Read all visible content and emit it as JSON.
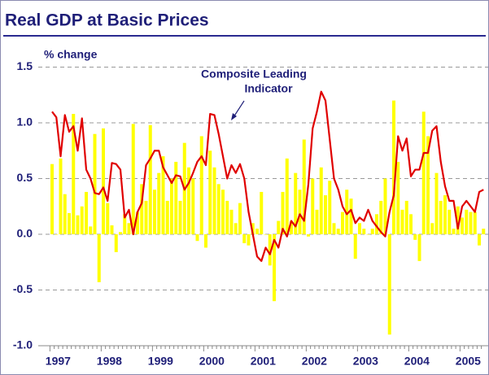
{
  "chart_data": {
    "type": "bar",
    "title": "Real GDP at Basic Prices",
    "ylabel": "% change",
    "annotation": [
      "Composite Leading",
      "Indicator"
    ],
    "categories": [
      "1997",
      null,
      null,
      null,
      null,
      null,
      null,
      null,
      null,
      null,
      null,
      null,
      "1998",
      null,
      null,
      null,
      null,
      null,
      null,
      null,
      null,
      null,
      null,
      null,
      "1999",
      null,
      null,
      null,
      null,
      null,
      null,
      null,
      null,
      null,
      null,
      null,
      "2000",
      null,
      null,
      null,
      null,
      null,
      null,
      null,
      null,
      null,
      null,
      null,
      "2001",
      null,
      null,
      null,
      null,
      null,
      null,
      null,
      null,
      null,
      null,
      null,
      "2002",
      null,
      null,
      null,
      null,
      null,
      null,
      null,
      null,
      null,
      null,
      null,
      "2003",
      null,
      null,
      null,
      null,
      null,
      null,
      null,
      null,
      null,
      null,
      null,
      "2004",
      null,
      null,
      null,
      null,
      null,
      null,
      null,
      null,
      null,
      null,
      null,
      "2005",
      null,
      null,
      null,
      null,
      null
    ],
    "series": [
      {
        "type": "bar",
        "color": "#ffff00",
        "values": [
          0.63,
          0.0,
          0.68,
          0.36,
          0.19,
          1.08,
          0.17,
          0.25,
          0.38,
          0.07,
          0.9,
          -0.43,
          0.95,
          0.28,
          0.08,
          -0.16,
          0.02,
          0.18,
          0.1,
          0.99,
          0.2,
          0.45,
          0.3,
          0.98,
          0.4,
          0.55,
          0.7,
          0.3,
          0.5,
          0.65,
          0.3,
          0.82,
          0.6,
          0.5,
          -0.06,
          0.88,
          -0.12,
          0.75,
          0.6,
          0.45,
          0.4,
          0.3,
          0.22,
          0.1,
          0.28,
          -0.08,
          -0.1,
          0.1,
          0.05,
          0.38,
          0.0,
          -0.28,
          -0.6,
          0.12,
          0.38,
          0.68,
          0.12,
          0.55,
          0.4,
          0.85,
          -0.02,
          0.5,
          0.22,
          0.6,
          0.35,
          0.48,
          0.1,
          0.05,
          0.2,
          0.4,
          0.32,
          -0.22,
          0.1,
          0.05,
          0.0,
          0.05,
          0.18,
          0.3,
          0.5,
          -0.9,
          1.2,
          0.65,
          0.22,
          0.3,
          0.18,
          -0.05,
          -0.24,
          1.1,
          0.88,
          0.1,
          0.55,
          0.3,
          0.35,
          0.22,
          0.05,
          0.25,
          0.15,
          0.22,
          0.2,
          0.2,
          -0.1,
          0.05
        ]
      },
      {
        "type": "line",
        "color": "#e00000",
        "values": [
          1.1,
          1.05,
          0.7,
          1.07,
          0.92,
          0.97,
          0.75,
          1.04,
          0.58,
          0.5,
          0.37,
          0.36,
          0.42,
          0.3,
          0.64,
          0.63,
          0.58,
          0.15,
          0.22,
          0.0,
          0.2,
          0.28,
          0.62,
          0.68,
          0.75,
          0.75,
          0.6,
          0.53,
          0.46,
          0.53,
          0.52,
          0.4,
          0.46,
          0.55,
          0.65,
          0.7,
          0.62,
          1.08,
          1.07,
          0.9,
          0.7,
          0.5,
          0.62,
          0.55,
          0.63,
          0.5,
          0.2,
          0.0,
          -0.2,
          -0.24,
          -0.12,
          -0.18,
          -0.05,
          -0.12,
          0.05,
          -0.02,
          0.12,
          0.07,
          0.18,
          0.12,
          0.45,
          0.95,
          1.1,
          1.28,
          1.2,
          0.85,
          0.5,
          0.4,
          0.25,
          0.18,
          0.22,
          0.1,
          0.15,
          0.12,
          0.22,
          0.12,
          0.07,
          0.02,
          -0.02,
          0.2,
          0.35,
          0.88,
          0.75,
          0.86,
          0.52,
          0.58,
          0.58,
          0.73,
          0.73,
          0.93,
          0.97,
          0.65,
          0.43,
          0.3,
          0.3,
          0.05,
          0.25,
          0.3,
          0.25,
          0.2,
          0.38,
          0.4
        ]
      }
    ],
    "ylim": [
      -1.0,
      1.5
    ],
    "yticks": [
      {
        "value": -1.0,
        "label": "-1.0"
      },
      -0.5,
      {
        "value": 0.0,
        "label": "0.0"
      },
      0.5,
      {
        "value": 1.0,
        "label": "1.0"
      },
      1.5
    ],
    "grid": true
  }
}
